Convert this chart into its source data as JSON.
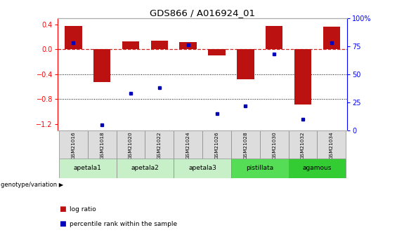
{
  "title": "GDS866 / A016924_01",
  "samples": [
    "GSM21016",
    "GSM21018",
    "GSM21020",
    "GSM21022",
    "GSM21024",
    "GSM21026",
    "GSM21028",
    "GSM21030",
    "GSM21032",
    "GSM21034"
  ],
  "log_ratio": [
    0.38,
    -0.52,
    0.13,
    0.14,
    0.12,
    -0.1,
    -0.48,
    0.37,
    -0.88,
    0.36
  ],
  "percentile_rank": [
    78,
    5,
    33,
    38,
    76,
    15,
    22,
    68,
    10,
    78
  ],
  "groups_def": [
    {
      "label": "apetala1",
      "samples": [
        0,
        1
      ],
      "color": "#c8f0c8"
    },
    {
      "label": "apetala2",
      "samples": [
        2,
        3
      ],
      "color": "#c8f0c8"
    },
    {
      "label": "apetala3",
      "samples": [
        4,
        5
      ],
      "color": "#c8f0c8"
    },
    {
      "label": "pistillata",
      "samples": [
        6,
        7
      ],
      "color": "#55dd55"
    },
    {
      "label": "agamous",
      "samples": [
        8,
        9
      ],
      "color": "#33cc33"
    }
  ],
  "bar_color": "#bb1111",
  "dot_color": "#0000bb",
  "dashed_line_color": "#cc2222",
  "ylim_left": [
    -1.3,
    0.5
  ],
  "ylim_right": [
    0,
    100
  ],
  "yticks_left": [
    0.4,
    0.0,
    -0.4,
    -0.8,
    -1.2
  ],
  "yticks_right": [
    100,
    75,
    50,
    25,
    0
  ],
  "background_color": "#ffffff",
  "sample_cell_color": "#dddddd",
  "legend_label_ratio": "log ratio",
  "legend_label_percentile": "percentile rank within the sample"
}
